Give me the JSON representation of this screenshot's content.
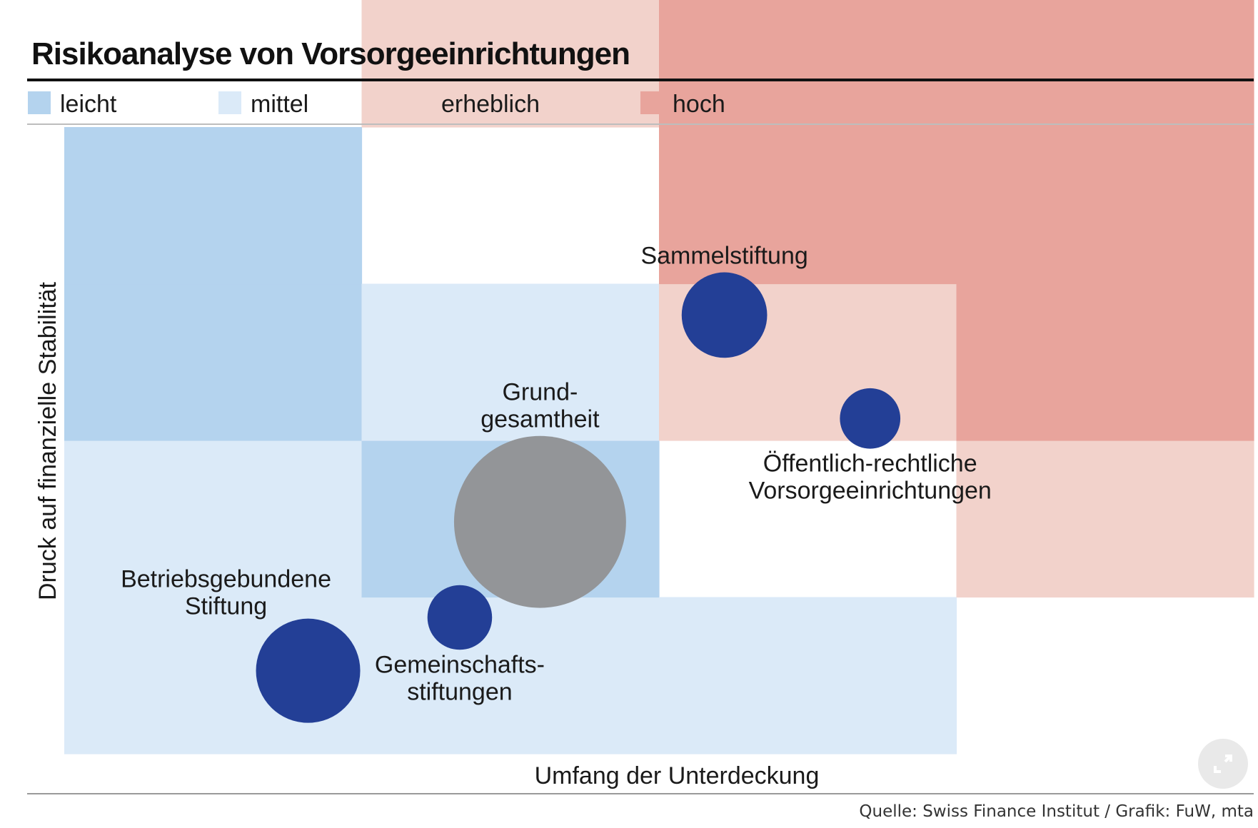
{
  "chart_data": {
    "type": "scatter",
    "title": "Risikoanalyse von Vorsorgeeinrichtungen",
    "xlabel": "Umfang der Unterdeckung",
    "ylabel": "Druck auf finanzielle Stabilität",
    "legend": [
      {
        "label": "leicht",
        "color": "#b4d3ee"
      },
      {
        "label": "mittel",
        "color": "#dbeaf8"
      },
      {
        "label": "erheblich",
        "color": "#f2d2cb"
      },
      {
        "label": "hoch",
        "color": "#e8a49c"
      }
    ],
    "legend_placement": "top",
    "grid_columns": 4,
    "grid_rows": 4,
    "zones": [
      {
        "col": 0,
        "row": 0,
        "cat": 1
      },
      {
        "col": 0,
        "row": 1,
        "cat": 1
      },
      {
        "col": 0,
        "row": 2,
        "cat": 0
      },
      {
        "col": 0,
        "row": 3,
        "cat": 0
      },
      {
        "col": 1,
        "row": 0,
        "cat": 1
      },
      {
        "col": 1,
        "row": 1,
        "cat": 0
      },
      {
        "col": 1,
        "row": 2,
        "cat": 1
      },
      {
        "col": 1,
        "row": 4,
        "cat": 2
      },
      {
        "col": 2,
        "row": 0,
        "cat": 1
      },
      {
        "col": 2,
        "row": 2,
        "cat": 2
      },
      {
        "col": 2,
        "row": 3,
        "cat": 3
      },
      {
        "col": 2,
        "row": 4,
        "cat": 3
      },
      {
        "col": 3,
        "row": 1,
        "cat": 2
      },
      {
        "col": 3,
        "row": 2,
        "cat": 3
      },
      {
        "col": 3,
        "row": 3,
        "cat": 3
      },
      {
        "col": 3,
        "row": 4,
        "cat": 3
      }
    ],
    "bubble_color": "#233f96",
    "reference_color": "#939598",
    "points": [
      {
        "name": "Betriebsgebundene Stiftung",
        "lines": [
          "Betriebsgebundene",
          "Stiftung"
        ],
        "x": 0.82,
        "y": 0.53,
        "size": 1.0,
        "label_pos": "above-left"
      },
      {
        "name": "Gemeinschaftsstiftungen",
        "lines": [
          "Gemeinschafts-",
          "stiftungen"
        ],
        "x": 1.33,
        "y": 0.87,
        "size": 0.62,
        "label_pos": "below"
      },
      {
        "name": "Grundgesamtheit",
        "lines": [
          "Grund-",
          "gesamtheit"
        ],
        "x": 1.6,
        "y": 1.48,
        "size": 1.65,
        "label_pos": "above",
        "reference": true
      },
      {
        "name": "Sammelstiftung",
        "lines": [
          "Sammelstiftung"
        ],
        "x": 2.22,
        "y": 2.8,
        "size": 0.82,
        "label_pos": "above"
      },
      {
        "name": "Öffentlich-rechtliche Vorsorgeeinrichtungen",
        "lines": [
          "Öffentlich-rechtliche",
          "Vorsorgeeinrichtungen"
        ],
        "x": 2.71,
        "y": 2.14,
        "size": 0.58,
        "label_pos": "below"
      }
    ],
    "source": "Quelle: Swiss Finance Institut / Grafik: FuW, mta"
  },
  "ui": {
    "expand_icon": "expand-icon"
  }
}
